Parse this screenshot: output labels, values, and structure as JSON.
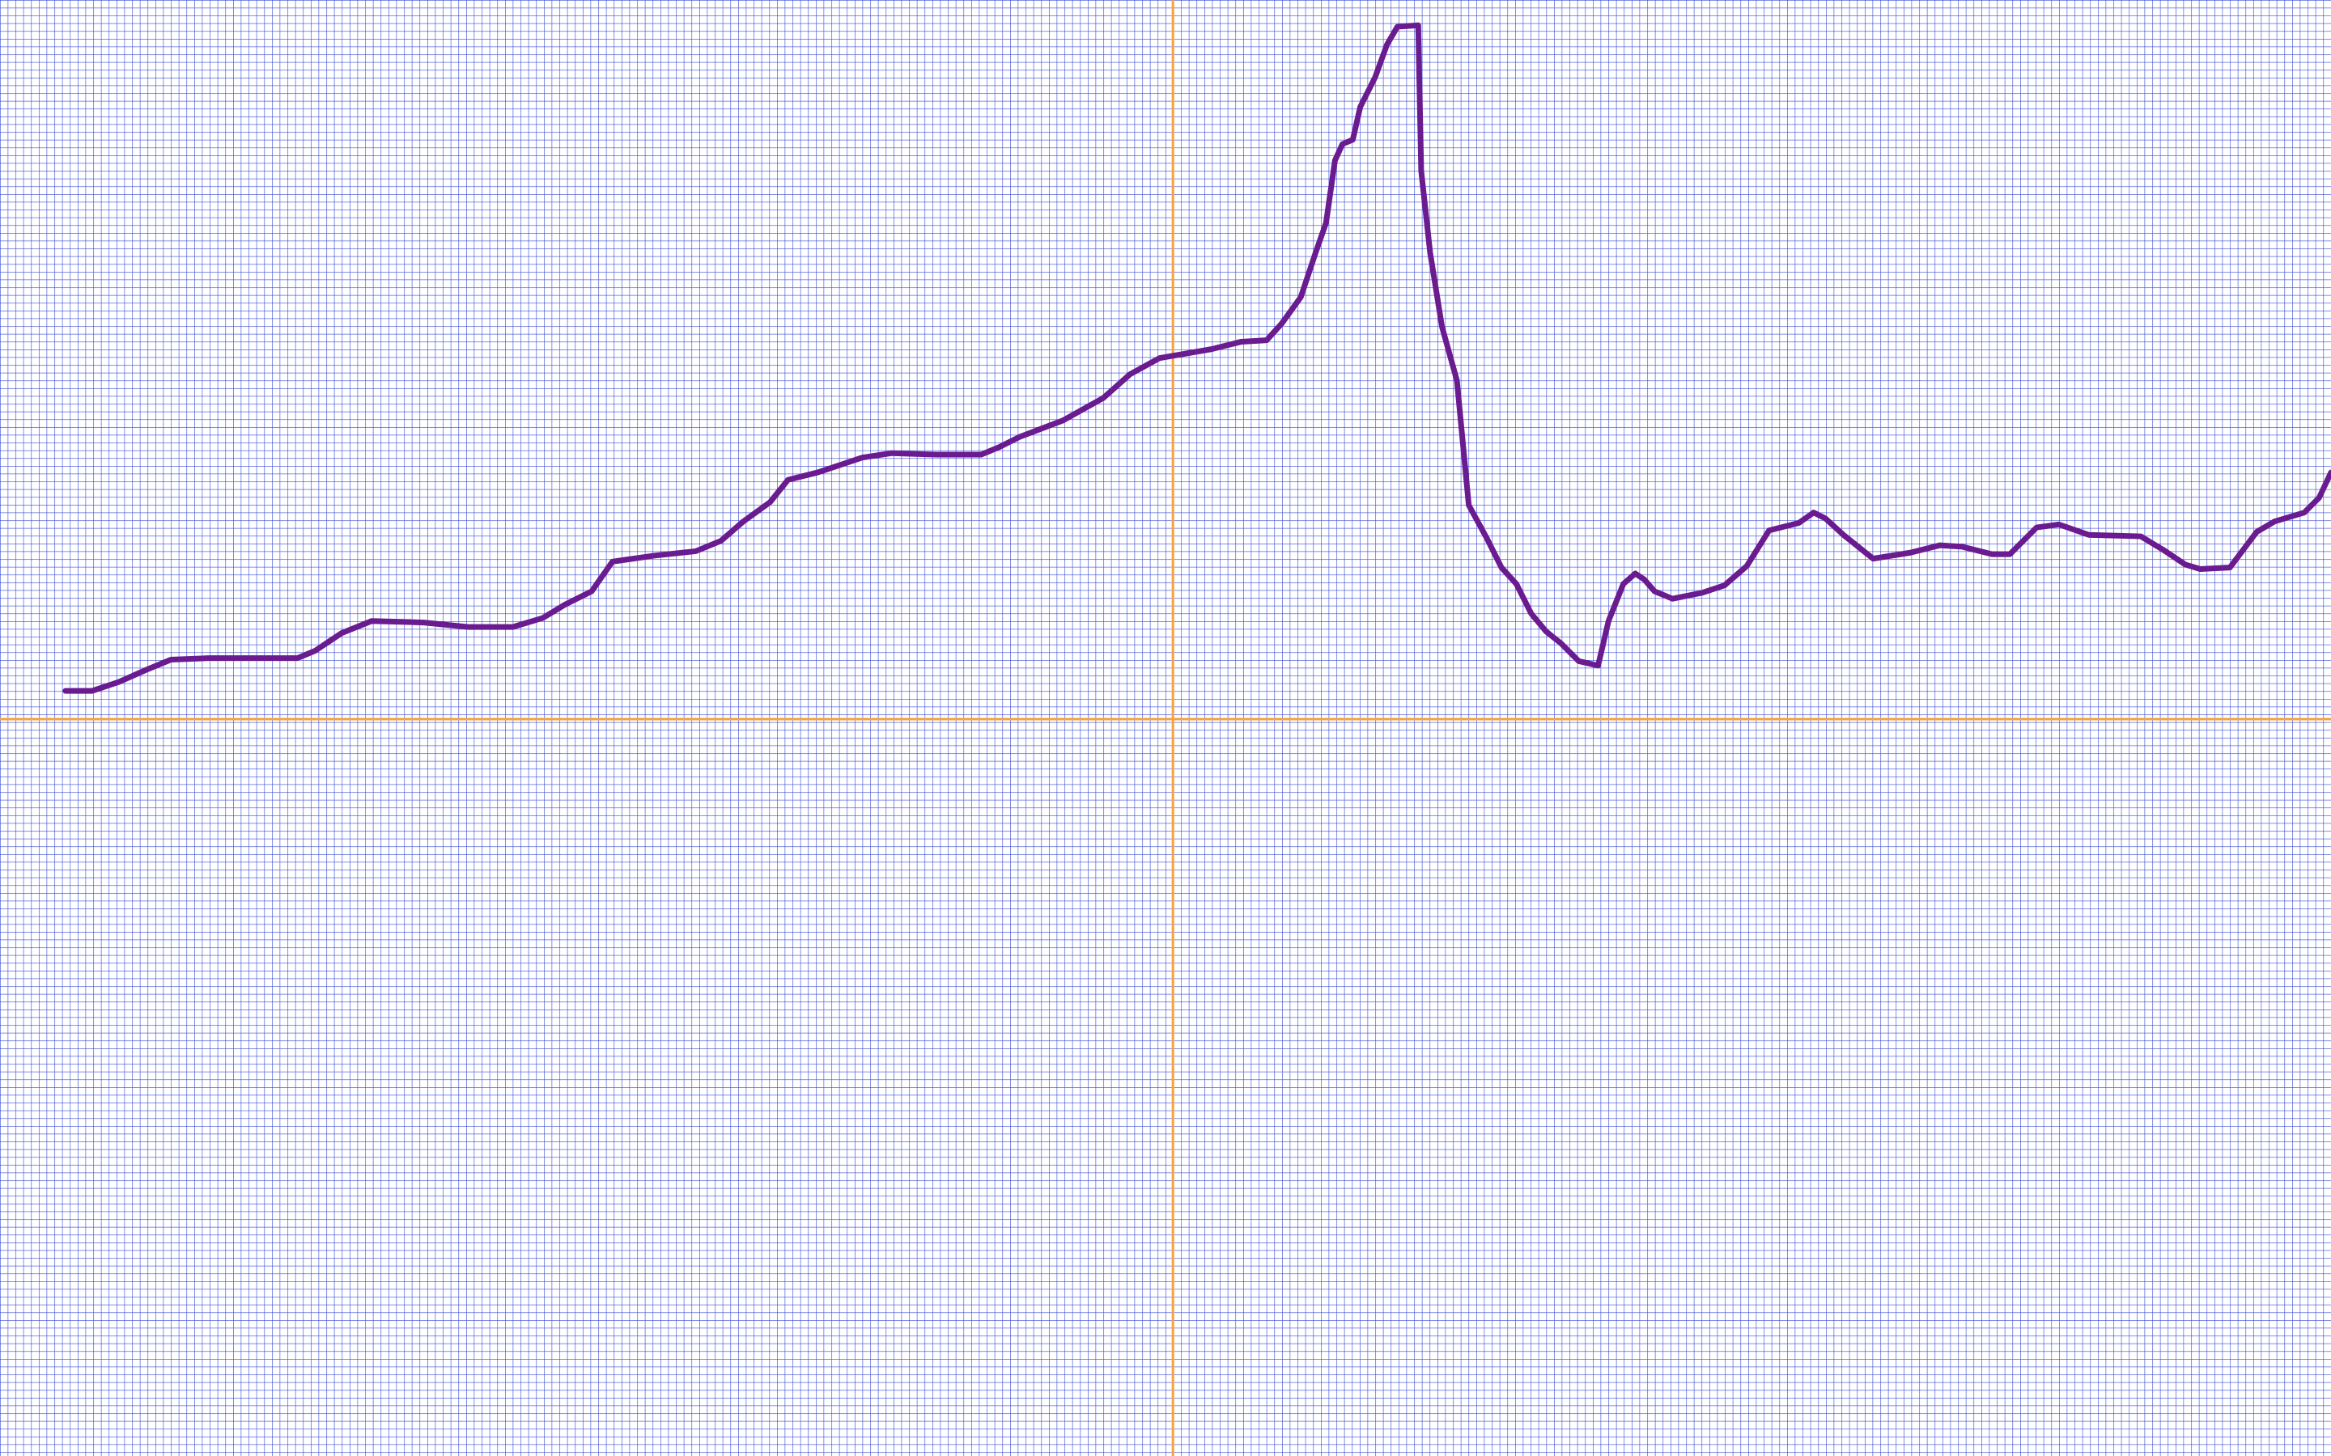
{
  "chart_data": {
    "type": "line",
    "x": [
      -745,
      -727,
      -709,
      -691,
      -674,
      -649,
      -589,
      -577,
      -559,
      -539,
      -504,
      -474,
      -444,
      -424,
      -409,
      -391,
      -377,
      -349,
      -321,
      -304,
      -289,
      -271,
      -259,
      -239,
      -209,
      -189,
      -159,
      -129,
      -117,
      -103,
      -74,
      -47,
      -29,
      -9,
      26,
      46,
      63,
      73,
      86,
      96,
      103,
      109,
      114,
      121,
      126,
      136,
      144,
      151,
      165,
      167,
      173,
      181,
      191,
      199,
      211,
      221,
      231,
      241,
      251,
      261,
      273,
      286,
      293,
      303,
      311,
      317,
      324,
      336,
      356,
      371,
      386,
      401,
      421,
      431,
      439,
      451,
      471,
      496,
      516,
      531,
      551,
      563,
      581,
      596,
      616,
      651,
      666,
      681,
      691,
      711,
      729,
      741,
      761,
      771,
      779
    ],
    "series": [
      {
        "color": "#6a1b8f",
        "values": [
          19,
          19,
          25,
          33,
          40,
          41,
          41,
          46,
          58,
          66,
          65,
          62,
          62,
          68,
          77,
          86,
          106,
          110,
          113,
          120,
          133,
          146,
          161,
          166,
          176,
          179,
          178,
          178,
          183,
          190,
          201,
          216,
          232,
          243,
          249,
          254,
          255,
          266,
          284,
          314,
          334,
          376,
          387,
          390,
          412,
          432,
          454,
          466,
          467,
          369,
          314,
          264,
          228,
          144,
          122,
          102,
          91,
          71,
          59,
          51,
          39,
          36,
          66,
          91,
          98,
          94,
          86,
          81,
          85,
          90,
          103,
          127,
          132,
          139,
          135,
          124,
          108,
          112,
          117,
          116,
          111,
          111,
          129,
          131,
          124,
          123,
          114,
          104,
          101,
          102,
          126,
          133,
          139,
          149,
          166
        ]
      }
    ],
    "xlim": [
      -789,
      779
    ],
    "ylim": [
      -496,
      484
    ],
    "grid": true,
    "grid_color": "#3346d6",
    "axis_color": "#f5a340"
  }
}
